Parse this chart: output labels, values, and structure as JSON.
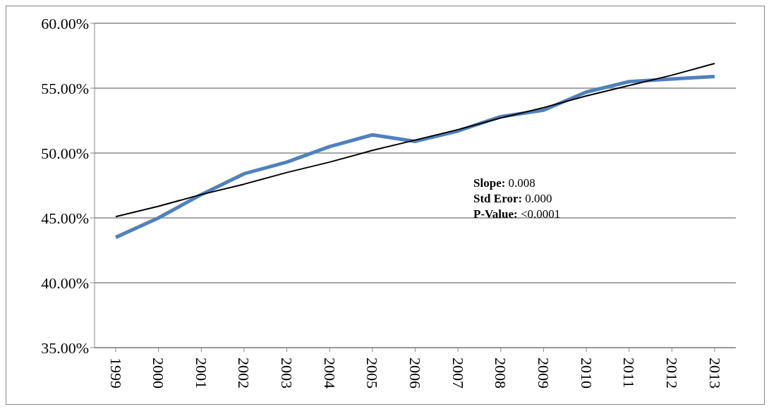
{
  "chart_data": {
    "type": "line",
    "categories": [
      "1999",
      "2000",
      "2001",
      "2002",
      "2003",
      "2004",
      "2005",
      "2006",
      "2007",
      "2008",
      "2009",
      "2010",
      "2011",
      "2012",
      "2013"
    ],
    "series": [
      {
        "color": "#4f81bd",
        "values": [
          43.5,
          45.0,
          46.8,
          48.4,
          49.3,
          50.5,
          51.4,
          50.9,
          51.7,
          52.8,
          53.3,
          54.7,
          55.5,
          55.7,
          55.9
        ]
      },
      {
        "type": "line",
        "color": "#000000",
        "values": [
          45.1,
          45.9,
          46.8,
          47.6,
          48.5,
          49.3,
          50.2,
          51.0,
          51.8,
          52.7,
          53.5,
          54.4,
          55.2,
          56.0,
          56.9
        ]
      }
    ],
    "ylim": [
      35,
      60
    ],
    "yticks": [
      {
        "value": 35,
        "label": "35.00%"
      },
      {
        "value": 40,
        "label": "40.00%"
      },
      {
        "value": 45,
        "label": "45.00%"
      },
      {
        "value": 50,
        "label": "50.00%"
      },
      {
        "value": 55,
        "label": "55.00%"
      },
      {
        "value": 60,
        "label": "60.00%"
      }
    ],
    "grid": "y",
    "marker": "none",
    "annotations": [
      "Slope: 0.008",
      "Std Eror: 0.000",
      "P-Value: <0.0001"
    ]
  }
}
